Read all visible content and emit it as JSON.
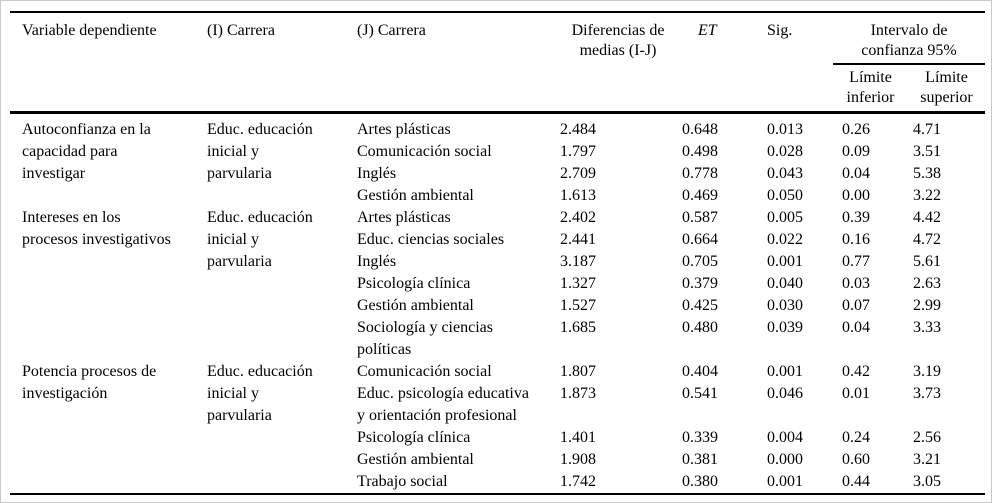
{
  "colors": {
    "rule": "#000000",
    "frame": "#c9c9c9",
    "background": "#ffffff",
    "text": "#000000"
  },
  "table": {
    "headers": {
      "variable": "Variable dependiente",
      "carrera_i": "(I) Carrera",
      "carrera_j": "(J) Carrera",
      "diff": "Diferencias de medias (I-J)",
      "et": "ET",
      "sig": "Sig.",
      "ci_span": "Intervalo de confianza 95%",
      "ci_lower": "Límite inferior",
      "ci_upper": "Límite superior"
    },
    "blocks": [
      {
        "variable": "Autoconfianza en la capacidad para investigar",
        "carrera_i": "Educ. educación inicial y parvularia",
        "rows": [
          {
            "carrera_j": "Artes plásticas",
            "diff": "2.484",
            "et": "0.648",
            "sig": "0.013",
            "ci_lower": "0.26",
            "ci_upper": "4.71"
          },
          {
            "carrera_j": "Comunicación social",
            "diff": "1.797",
            "et": "0.498",
            "sig": "0.028",
            "ci_lower": "0.09",
            "ci_upper": "3.51"
          },
          {
            "carrera_j": "Inglés",
            "diff": "2.709",
            "et": "0.778",
            "sig": "0.043",
            "ci_lower": "0.04",
            "ci_upper": "5.38"
          },
          {
            "carrera_j": "Gestión ambiental",
            "diff": "1.613",
            "et": "0.469",
            "sig": "0.050",
            "ci_lower": "0.00",
            "ci_upper": "3.22"
          }
        ]
      },
      {
        "variable": "Intereses en los procesos investigativos",
        "carrera_i": "Educ. educación inicial y parvularia",
        "rows": [
          {
            "carrera_j": "Artes plásticas",
            "diff": "2.402",
            "et": "0.587",
            "sig": "0.005",
            "ci_lower": "0.39",
            "ci_upper": "4.42"
          },
          {
            "carrera_j": "Educ. ciencias sociales",
            "diff": "2.441",
            "et": "0.664",
            "sig": "0.022",
            "ci_lower": "0.16",
            "ci_upper": "4.72"
          },
          {
            "carrera_j": "Inglés",
            "diff": "3.187",
            "et": "0.705",
            "sig": "0.001",
            "ci_lower": "0.77",
            "ci_upper": "5.61"
          },
          {
            "carrera_j": "Psicología clínica",
            "diff": "1.327",
            "et": "0.379",
            "sig": "0.040",
            "ci_lower": "0.03",
            "ci_upper": "2.63"
          },
          {
            "carrera_j": "Gestión ambiental",
            "diff": "1.527",
            "et": "0.425",
            "sig": "0.030",
            "ci_lower": "0.07",
            "ci_upper": "2.99"
          },
          {
            "carrera_j": "Sociología y ciencias políticas",
            "diff": "1.685",
            "et": "0.480",
            "sig": "0.039",
            "ci_lower": "0.04",
            "ci_upper": "3.33"
          }
        ]
      },
      {
        "variable": "Potencia procesos de investigación",
        "carrera_i": "Educ. educación inicial y parvularia",
        "rows": [
          {
            "carrera_j": "Comunicación social",
            "diff": "1.807",
            "et": "0.404",
            "sig": "0.001",
            "ci_lower": "0.42",
            "ci_upper": "3.19"
          },
          {
            "carrera_j": "Educ. psicología educativa y orientación profesional",
            "diff": "1.873",
            "et": "0.541",
            "sig": "0.046",
            "ci_lower": "0.01",
            "ci_upper": "3.73"
          },
          {
            "carrera_j": "Psicología clínica",
            "diff": "1.401",
            "et": "0.339",
            "sig": "0.004",
            "ci_lower": "0.24",
            "ci_upper": "2.56"
          },
          {
            "carrera_j": "Gestión ambiental",
            "diff": "1.908",
            "et": "0.381",
            "sig": "0.000",
            "ci_lower": "0.60",
            "ci_upper": "3.21"
          },
          {
            "carrera_j": "Trabajo social",
            "diff": "1.742",
            "et": "0.380",
            "sig": "0.001",
            "ci_lower": "0.44",
            "ci_upper": "3.05"
          }
        ]
      }
    ]
  }
}
